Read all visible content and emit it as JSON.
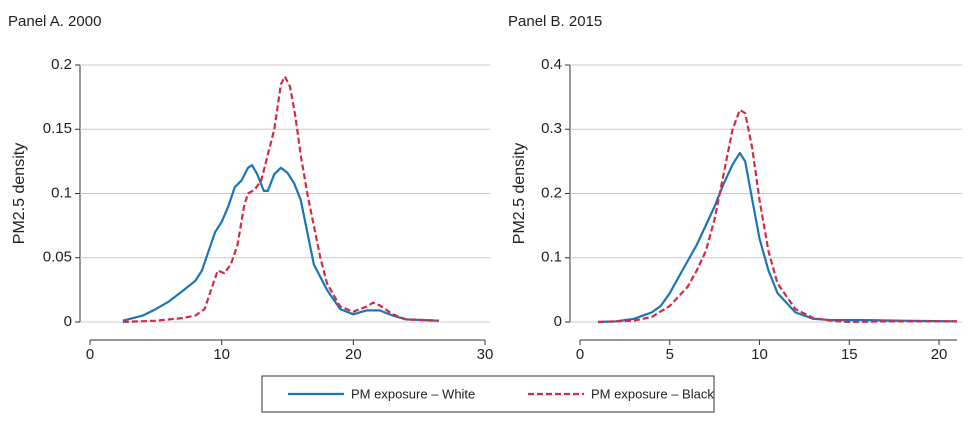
{
  "chart_data": [
    {
      "type": "line",
      "title": "Panel A. 2000",
      "y_label": "PM2.5 density",
      "xlim": [
        0,
        30
      ],
      "xticks": [
        0,
        10,
        20,
        30
      ],
      "ylim": [
        0,
        0.2
      ],
      "yticks": [
        0,
        0.05,
        0.1,
        0.15,
        0.2
      ],
      "grid": true,
      "series": [
        {
          "name": "PM exposure – White",
          "color": "#1b75b9",
          "dash": false,
          "x": [
            2.5,
            4,
            5,
            6,
            7,
            8,
            8.5,
            9,
            9.5,
            10,
            10.5,
            11,
            11.5,
            12,
            12.3,
            12.7,
            13.2,
            13.5,
            14,
            14.5,
            15,
            15.5,
            16,
            16.5,
            17,
            18,
            19,
            20,
            21,
            22,
            23,
            24,
            26.5
          ],
          "values": [
            0.001,
            0.005,
            0.01,
            0.016,
            0.024,
            0.032,
            0.04,
            0.055,
            0.07,
            0.078,
            0.09,
            0.105,
            0.11,
            0.12,
            0.122,
            0.115,
            0.102,
            0.102,
            0.115,
            0.12,
            0.116,
            0.108,
            0.095,
            0.07,
            0.045,
            0.025,
            0.01,
            0.006,
            0.009,
            0.009,
            0.005,
            0.002,
            0.001
          ]
        },
        {
          "name": "PM exposure – Black",
          "color": "#d42a42",
          "dash": true,
          "x": [
            2.5,
            5,
            7,
            8,
            8.7,
            9.2,
            9.7,
            10.2,
            10.7,
            11.2,
            11.7,
            12,
            12.5,
            13,
            13.5,
            14,
            14.5,
            14.8,
            15.2,
            15.6,
            16,
            16.5,
            17,
            17.5,
            18,
            19,
            20,
            21,
            21.5,
            22,
            23,
            24,
            26.5
          ],
          "values": [
            0,
            0.001,
            0.003,
            0.005,
            0.01,
            0.025,
            0.04,
            0.038,
            0.045,
            0.06,
            0.09,
            0.1,
            0.103,
            0.11,
            0.13,
            0.15,
            0.185,
            0.191,
            0.183,
            0.16,
            0.13,
            0.1,
            0.075,
            0.05,
            0.03,
            0.012,
            0.008,
            0.012,
            0.015,
            0.013,
            0.006,
            0.002,
            0.001
          ]
        }
      ]
    },
    {
      "type": "line",
      "title": "Panel B. 2015",
      "y_label": "PM2.5 density",
      "xlim": [
        0,
        21
      ],
      "xticks": [
        0,
        5,
        10,
        15,
        20
      ],
      "ylim": [
        0,
        0.4
      ],
      "yticks": [
        0,
        0.1,
        0.2,
        0.3,
        0.4
      ],
      "grid": true,
      "series": [
        {
          "color": "#1b75b9",
          "dash": false,
          "x": [
            1,
            2,
            3,
            4,
            4.5,
            5,
            5.5,
            6,
            6.5,
            7,
            7.5,
            8,
            8.5,
            8.9,
            9.2,
            9.6,
            10,
            10.5,
            11,
            12,
            13,
            14,
            16,
            18,
            21
          ],
          "values": [
            0,
            0.001,
            0.005,
            0.015,
            0.025,
            0.045,
            0.07,
            0.095,
            0.12,
            0.15,
            0.18,
            0.215,
            0.245,
            0.263,
            0.25,
            0.19,
            0.13,
            0.08,
            0.045,
            0.015,
            0.005,
            0.003,
            0.003,
            0.002,
            0.001
          ]
        },
        {
          "color": "#d42a42",
          "dash": true,
          "x": [
            1,
            3,
            4,
            5,
            6,
            6.5,
            7,
            7.5,
            8,
            8.5,
            8.9,
            9.2,
            9.6,
            10,
            10.5,
            11,
            12,
            13,
            14,
            15,
            17,
            21
          ],
          "values": [
            0,
            0.002,
            0.008,
            0.025,
            0.055,
            0.08,
            0.11,
            0.16,
            0.23,
            0.3,
            0.33,
            0.325,
            0.27,
            0.19,
            0.11,
            0.06,
            0.02,
            0.006,
            0.002,
            0,
            0.001,
            0.001
          ]
        }
      ]
    }
  ]
}
